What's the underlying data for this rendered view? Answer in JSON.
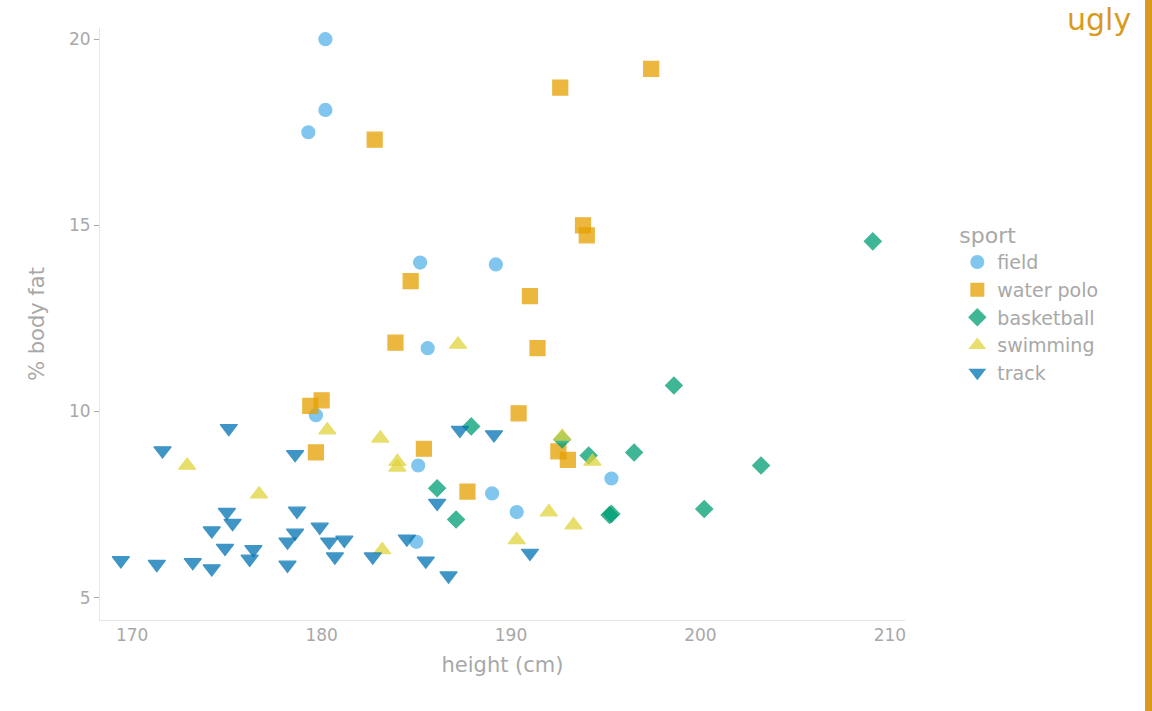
{
  "chart_data": {
    "type": "scatter",
    "x_label": "height (cm)",
    "y_label": "% body fat",
    "legend_title": "sport",
    "annotations": [
      "ugly"
    ],
    "legend": "right",
    "grid": false,
    "xlim": [
      168.3,
      210.8
    ],
    "ylim": [
      4.4,
      20.3
    ],
    "xticks": [
      170,
      180,
      190,
      200,
      210
    ],
    "yticks": [
      5,
      10,
      15,
      20
    ],
    "series": [
      {
        "name": "field",
        "color": "#56b4e9",
        "marker": "circle",
        "x": [
          180.2,
          180.2,
          179.3,
          185.2,
          189.2,
          185.6,
          179.7,
          185.1,
          195.3,
          189.0,
          190.3,
          185.0
        ],
        "values": [
          20.0,
          18.1,
          17.5,
          14.0,
          13.95,
          11.7,
          9.9,
          8.55,
          8.2,
          7.8,
          7.3,
          6.5
        ]
      },
      {
        "name": "water polo",
        "color": "#e69f00",
        "marker": "square",
        "x": [
          192.6,
          197.4,
          182.8,
          193.8,
          194.0,
          184.7,
          191.0,
          183.9,
          191.4,
          179.4,
          180.0,
          190.4,
          185.4,
          179.7,
          192.5,
          193.0,
          187.7
        ],
        "values": [
          18.7,
          19.2,
          17.3,
          15.0,
          14.73,
          13.5,
          13.1,
          11.85,
          11.7,
          10.15,
          10.3,
          9.95,
          9.0,
          8.9,
          8.93,
          8.7,
          7.85
        ]
      },
      {
        "name": "basketball",
        "color": "#009e73",
        "marker": "diamond",
        "x": [
          209.1,
          198.6,
          187.9,
          192.7,
          194.1,
          196.5,
          203.2,
          186.1,
          187.1,
          195.2,
          195.3,
          200.2
        ],
        "values": [
          14.57,
          10.7,
          9.6,
          9.25,
          8.82,
          8.9,
          8.55,
          7.94,
          7.1,
          7.22,
          7.25,
          7.38
        ]
      },
      {
        "name": "swimming",
        "color": "#e0d43c",
        "marker": "triangle-up",
        "x": [
          187.2,
          180.3,
          183.1,
          172.9,
          184.0,
          184.0,
          192.7,
          194.3,
          176.7,
          192.0,
          193.3,
          190.3,
          183.2
        ],
        "values": [
          11.8,
          9.5,
          9.28,
          8.55,
          8.65,
          8.5,
          9.33,
          8.66,
          7.78,
          7.3,
          6.95,
          6.55,
          6.28
        ]
      },
      {
        "name": "track",
        "color": "#0072b2",
        "marker": "triangle-down",
        "x": [
          169.4,
          171.3,
          171.6,
          175.1,
          173.2,
          174.2,
          174.2,
          175.0,
          175.3,
          174.9,
          176.4,
          176.2,
          178.6,
          178.7,
          178.6,
          178.2,
          178.2,
          179.9,
          180.4,
          180.7,
          181.2,
          182.7,
          184.5,
          186.1,
          185.5,
          186.7,
          187.3,
          189.1,
          191.0
        ],
        "values": [
          6.0,
          5.9,
          8.95,
          9.55,
          5.95,
          5.78,
          6.8,
          7.3,
          7.0,
          6.33,
          6.3,
          6.04,
          8.85,
          7.33,
          6.74,
          6.5,
          5.88,
          6.9,
          6.5,
          6.1,
          6.55,
          6.1,
          6.58,
          7.54,
          5.99,
          5.59,
          9.5,
          9.38,
          6.2
        ]
      }
    ]
  }
}
